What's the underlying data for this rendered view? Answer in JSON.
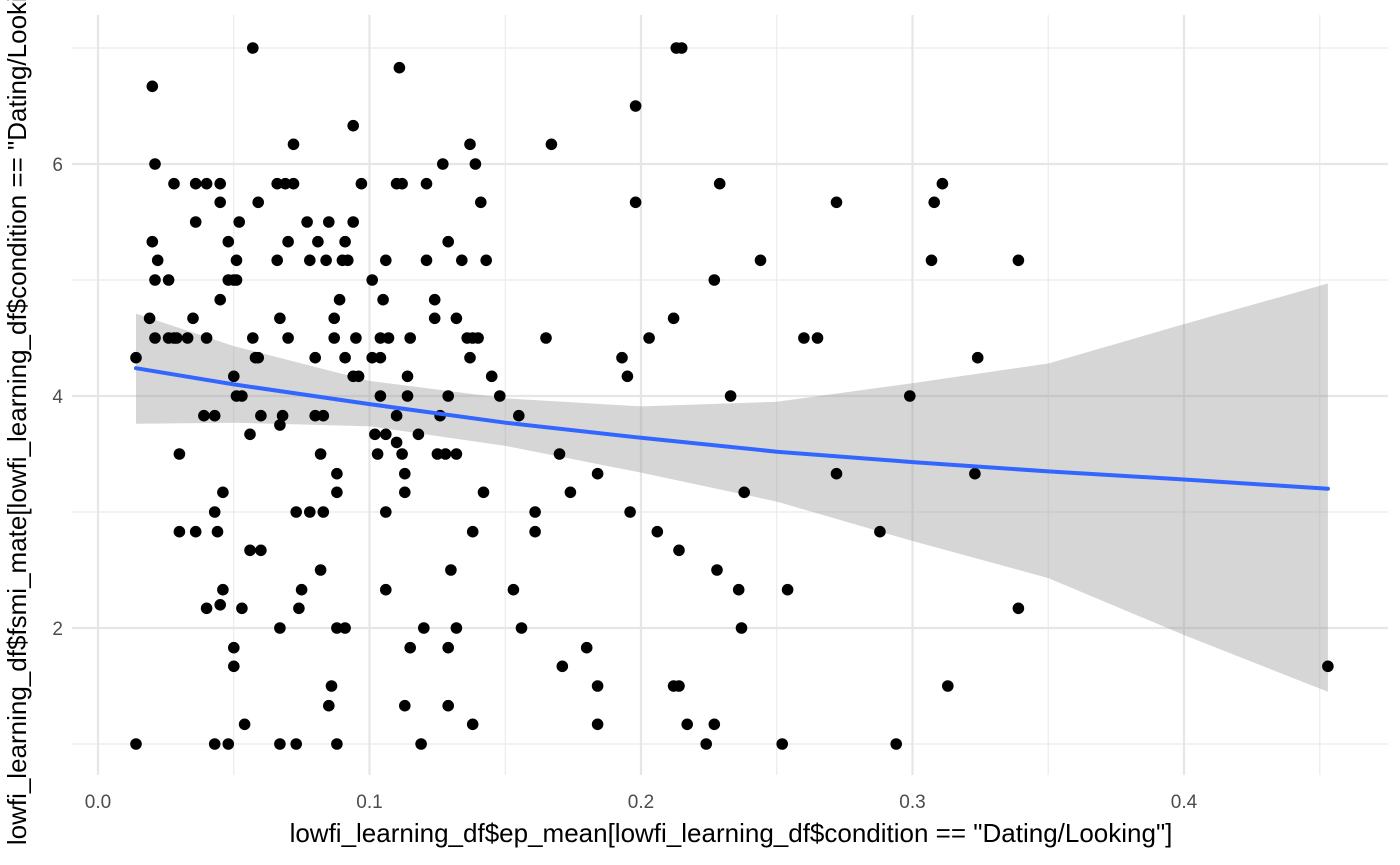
{
  "chart_data": {
    "type": "scatter",
    "xlabel": "lowfi_learning_df$ep_mean[lowfi_learning_df$condition == \"Dating/Looking\"]",
    "ylabel": "lowfi_learning_df$fsmi_mate[lowfi_learning_df$condition == \"Dating/Looking\"]",
    "xlim": [
      -0.01,
      0.47
    ],
    "ylim": [
      0.75,
      7.2
    ],
    "x_ticks": [
      0.0,
      0.1,
      0.2,
      0.3,
      0.4
    ],
    "x_tick_labels": [
      "0.0",
      "0.1",
      "0.2",
      "0.3",
      "0.4"
    ],
    "y_ticks": [
      2,
      4,
      6
    ],
    "y_tick_labels": [
      "2",
      "4",
      "6"
    ],
    "grid": true,
    "point_color": "#000000",
    "trend_color": "#3366ff",
    "band_color": "#999999",
    "points": [
      [
        0.057,
        7.0
      ],
      [
        0.213,
        7.0
      ],
      [
        0.215,
        7.0
      ],
      [
        0.111,
        6.83
      ],
      [
        0.02,
        6.67
      ],
      [
        0.198,
        6.5
      ],
      [
        0.094,
        6.33
      ],
      [
        0.137,
        6.17
      ],
      [
        0.167,
        6.17
      ],
      [
        0.072,
        6.17
      ],
      [
        0.021,
        6.0
      ],
      [
        0.127,
        6.0
      ],
      [
        0.139,
        6.0
      ],
      [
        0.028,
        5.83
      ],
      [
        0.036,
        5.83
      ],
      [
        0.04,
        5.83
      ],
      [
        0.045,
        5.83
      ],
      [
        0.066,
        5.83
      ],
      [
        0.069,
        5.83
      ],
      [
        0.072,
        5.83
      ],
      [
        0.097,
        5.83
      ],
      [
        0.11,
        5.83
      ],
      [
        0.112,
        5.83
      ],
      [
        0.121,
        5.83
      ],
      [
        0.229,
        5.83
      ],
      [
        0.311,
        5.83
      ],
      [
        0.045,
        5.67
      ],
      [
        0.059,
        5.67
      ],
      [
        0.141,
        5.67
      ],
      [
        0.198,
        5.67
      ],
      [
        0.272,
        5.67
      ],
      [
        0.308,
        5.67
      ],
      [
        0.036,
        5.5
      ],
      [
        0.052,
        5.5
      ],
      [
        0.077,
        5.5
      ],
      [
        0.085,
        5.5
      ],
      [
        0.094,
        5.5
      ],
      [
        0.02,
        5.33
      ],
      [
        0.048,
        5.33
      ],
      [
        0.07,
        5.33
      ],
      [
        0.081,
        5.33
      ],
      [
        0.091,
        5.33
      ],
      [
        0.129,
        5.33
      ],
      [
        0.022,
        5.17
      ],
      [
        0.051,
        5.17
      ],
      [
        0.066,
        5.17
      ],
      [
        0.078,
        5.17
      ],
      [
        0.084,
        5.17
      ],
      [
        0.09,
        5.17
      ],
      [
        0.092,
        5.17
      ],
      [
        0.106,
        5.17
      ],
      [
        0.121,
        5.17
      ],
      [
        0.134,
        5.17
      ],
      [
        0.143,
        5.17
      ],
      [
        0.244,
        5.17
      ],
      [
        0.307,
        5.17
      ],
      [
        0.339,
        5.17
      ],
      [
        0.021,
        5.0
      ],
      [
        0.026,
        5.0
      ],
      [
        0.048,
        5.0
      ],
      [
        0.05,
        5.0
      ],
      [
        0.051,
        5.0
      ],
      [
        0.101,
        5.0
      ],
      [
        0.227,
        5.0
      ],
      [
        0.045,
        4.83
      ],
      [
        0.089,
        4.83
      ],
      [
        0.105,
        4.83
      ],
      [
        0.124,
        4.83
      ],
      [
        0.019,
        4.67
      ],
      [
        0.035,
        4.67
      ],
      [
        0.067,
        4.67
      ],
      [
        0.087,
        4.67
      ],
      [
        0.124,
        4.67
      ],
      [
        0.132,
        4.67
      ],
      [
        0.212,
        4.67
      ],
      [
        0.021,
        4.5
      ],
      [
        0.026,
        4.5
      ],
      [
        0.028,
        4.5
      ],
      [
        0.029,
        4.5
      ],
      [
        0.033,
        4.5
      ],
      [
        0.04,
        4.5
      ],
      [
        0.057,
        4.5
      ],
      [
        0.07,
        4.5
      ],
      [
        0.087,
        4.5
      ],
      [
        0.095,
        4.5
      ],
      [
        0.104,
        4.5
      ],
      [
        0.107,
        4.5
      ],
      [
        0.115,
        4.5
      ],
      [
        0.136,
        4.5
      ],
      [
        0.138,
        4.5
      ],
      [
        0.14,
        4.5
      ],
      [
        0.165,
        4.5
      ],
      [
        0.203,
        4.5
      ],
      [
        0.26,
        4.5
      ],
      [
        0.265,
        4.5
      ],
      [
        0.014,
        4.33
      ],
      [
        0.058,
        4.33
      ],
      [
        0.059,
        4.33
      ],
      [
        0.08,
        4.33
      ],
      [
        0.091,
        4.33
      ],
      [
        0.101,
        4.33
      ],
      [
        0.104,
        4.33
      ],
      [
        0.137,
        4.33
      ],
      [
        0.193,
        4.33
      ],
      [
        0.324,
        4.33
      ],
      [
        0.05,
        4.17
      ],
      [
        0.094,
        4.17
      ],
      [
        0.096,
        4.17
      ],
      [
        0.114,
        4.17
      ],
      [
        0.145,
        4.17
      ],
      [
        0.195,
        4.17
      ],
      [
        0.051,
        4.0
      ],
      [
        0.053,
        4.0
      ],
      [
        0.104,
        4.0
      ],
      [
        0.114,
        4.0
      ],
      [
        0.129,
        4.0
      ],
      [
        0.148,
        4.0
      ],
      [
        0.233,
        4.0
      ],
      [
        0.299,
        4.0
      ],
      [
        0.039,
        3.83
      ],
      [
        0.043,
        3.83
      ],
      [
        0.06,
        3.83
      ],
      [
        0.068,
        3.83
      ],
      [
        0.08,
        3.83
      ],
      [
        0.083,
        3.83
      ],
      [
        0.11,
        3.83
      ],
      [
        0.126,
        3.83
      ],
      [
        0.155,
        3.83
      ],
      [
        0.067,
        3.75
      ],
      [
        0.056,
        3.67
      ],
      [
        0.102,
        3.67
      ],
      [
        0.106,
        3.67
      ],
      [
        0.118,
        3.67
      ],
      [
        0.11,
        3.6
      ],
      [
        0.03,
        3.5
      ],
      [
        0.082,
        3.5
      ],
      [
        0.103,
        3.5
      ],
      [
        0.112,
        3.5
      ],
      [
        0.125,
        3.5
      ],
      [
        0.128,
        3.5
      ],
      [
        0.132,
        3.5
      ],
      [
        0.17,
        3.5
      ],
      [
        0.088,
        3.33
      ],
      [
        0.113,
        3.33
      ],
      [
        0.184,
        3.33
      ],
      [
        0.272,
        3.33
      ],
      [
        0.323,
        3.33
      ],
      [
        0.046,
        3.17
      ],
      [
        0.088,
        3.17
      ],
      [
        0.113,
        3.17
      ],
      [
        0.142,
        3.17
      ],
      [
        0.174,
        3.17
      ],
      [
        0.238,
        3.17
      ],
      [
        0.043,
        3.0
      ],
      [
        0.073,
        3.0
      ],
      [
        0.078,
        3.0
      ],
      [
        0.083,
        3.0
      ],
      [
        0.106,
        3.0
      ],
      [
        0.161,
        3.0
      ],
      [
        0.196,
        3.0
      ],
      [
        0.03,
        2.83
      ],
      [
        0.036,
        2.83
      ],
      [
        0.044,
        2.83
      ],
      [
        0.138,
        2.83
      ],
      [
        0.161,
        2.83
      ],
      [
        0.206,
        2.83
      ],
      [
        0.288,
        2.83
      ],
      [
        0.056,
        2.67
      ],
      [
        0.06,
        2.67
      ],
      [
        0.214,
        2.67
      ],
      [
        0.082,
        2.5
      ],
      [
        0.13,
        2.5
      ],
      [
        0.228,
        2.5
      ],
      [
        0.046,
        2.33
      ],
      [
        0.075,
        2.33
      ],
      [
        0.106,
        2.33
      ],
      [
        0.153,
        2.33
      ],
      [
        0.236,
        2.33
      ],
      [
        0.254,
        2.33
      ],
      [
        0.045,
        2.2
      ],
      [
        0.04,
        2.17
      ],
      [
        0.053,
        2.17
      ],
      [
        0.074,
        2.17
      ],
      [
        0.339,
        2.17
      ],
      [
        0.067,
        2.0
      ],
      [
        0.088,
        2.0
      ],
      [
        0.091,
        2.0
      ],
      [
        0.12,
        2.0
      ],
      [
        0.132,
        2.0
      ],
      [
        0.156,
        2.0
      ],
      [
        0.237,
        2.0
      ],
      [
        0.05,
        1.83
      ],
      [
        0.115,
        1.83
      ],
      [
        0.129,
        1.83
      ],
      [
        0.18,
        1.83
      ],
      [
        0.05,
        1.67
      ],
      [
        0.171,
        1.67
      ],
      [
        0.453,
        1.67
      ],
      [
        0.086,
        1.5
      ],
      [
        0.184,
        1.5
      ],
      [
        0.212,
        1.5
      ],
      [
        0.214,
        1.5
      ],
      [
        0.313,
        1.5
      ],
      [
        0.085,
        1.33
      ],
      [
        0.113,
        1.33
      ],
      [
        0.129,
        1.33
      ],
      [
        0.054,
        1.17
      ],
      [
        0.138,
        1.17
      ],
      [
        0.184,
        1.17
      ],
      [
        0.217,
        1.17
      ],
      [
        0.227,
        1.17
      ],
      [
        0.014,
        1.0
      ],
      [
        0.043,
        1.0
      ],
      [
        0.048,
        1.0
      ],
      [
        0.067,
        1.0
      ],
      [
        0.073,
        1.0
      ],
      [
        0.088,
        1.0
      ],
      [
        0.119,
        1.0
      ],
      [
        0.224,
        1.0
      ],
      [
        0.252,
        1.0
      ],
      [
        0.294,
        1.0
      ]
    ],
    "trend_line": {
      "x": [
        0.014,
        0.05,
        0.1,
        0.15,
        0.2,
        0.25,
        0.3,
        0.35,
        0.4,
        0.453
      ],
      "y": [
        4.24,
        4.1,
        3.93,
        3.77,
        3.64,
        3.52,
        3.43,
        3.35,
        3.28,
        3.2
      ],
      "ci_lower": [
        3.76,
        3.77,
        3.74,
        3.57,
        3.34,
        3.09,
        2.75,
        2.43,
        1.94,
        1.45
      ],
      "ci_upper": [
        4.71,
        4.43,
        4.13,
        3.98,
        3.91,
        3.95,
        4.11,
        4.28,
        4.62,
        4.97
      ]
    }
  }
}
